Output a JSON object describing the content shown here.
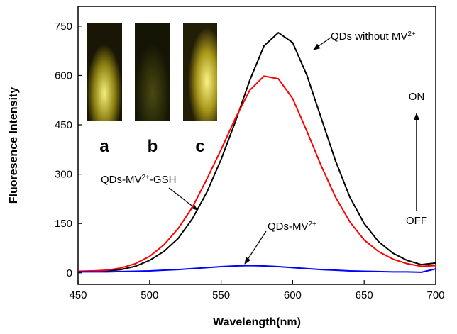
{
  "chart_data": {
    "type": "line",
    "x_label": "Wavelength(nm)",
    "y_label": "Fluoresence Intensity",
    "x": [
      450,
      460,
      470,
      480,
      490,
      500,
      510,
      520,
      530,
      540,
      550,
      560,
      570,
      580,
      590,
      600,
      610,
      620,
      630,
      640,
      650,
      660,
      670,
      680,
      690,
      700
    ],
    "series": [
      {
        "label_parts": [
          {
            "text": "QDs without MV"
          },
          {
            "text": "2+",
            "sup": true
          }
        ],
        "color": "#000000",
        "values": [
          5,
          5,
          6,
          10,
          20,
          38,
          65,
          105,
          165,
          245,
          345,
          460,
          585,
          690,
          730,
          700,
          600,
          470,
          340,
          230,
          150,
          95,
          60,
          38,
          25,
          30
        ]
      },
      {
        "label_parts": [
          {
            "text": "QDs-MV"
          },
          {
            "text": "2+",
            "sup": true
          },
          {
            "text": "-GSH"
          }
        ],
        "color": "#ff0000",
        "values": [
          5,
          6,
          8,
          15,
          28,
          50,
          85,
          135,
          200,
          285,
          375,
          470,
          555,
          598,
          590,
          530,
          430,
          325,
          230,
          155,
          100,
          65,
          42,
          28,
          20,
          22
        ]
      },
      {
        "label_parts": [
          {
            "text": "QDs-MV"
          },
          {
            "text": "2+",
            "sup": true
          }
        ],
        "color": "#0000ff",
        "values": [
          3,
          3,
          3,
          4,
          5,
          6,
          8,
          10,
          13,
          16,
          19,
          21,
          22,
          21,
          19,
          16,
          13,
          10,
          8,
          6,
          5,
          4,
          3,
          3,
          2,
          12
        ]
      }
    ],
    "xlim": [
      450,
      700
    ],
    "xticks": [
      450,
      500,
      550,
      600,
      650,
      700
    ],
    "ylim": [
      -35,
      810
    ],
    "yticks": [
      0,
      150,
      300,
      450,
      600,
      750
    ],
    "switch_labels": [
      {
        "text": "ON",
        "color": "#ff0000"
      },
      {
        "text": "OFF",
        "color": "#0000ff"
      }
    ],
    "inset_labels": [
      "a",
      "b",
      "c"
    ]
  }
}
